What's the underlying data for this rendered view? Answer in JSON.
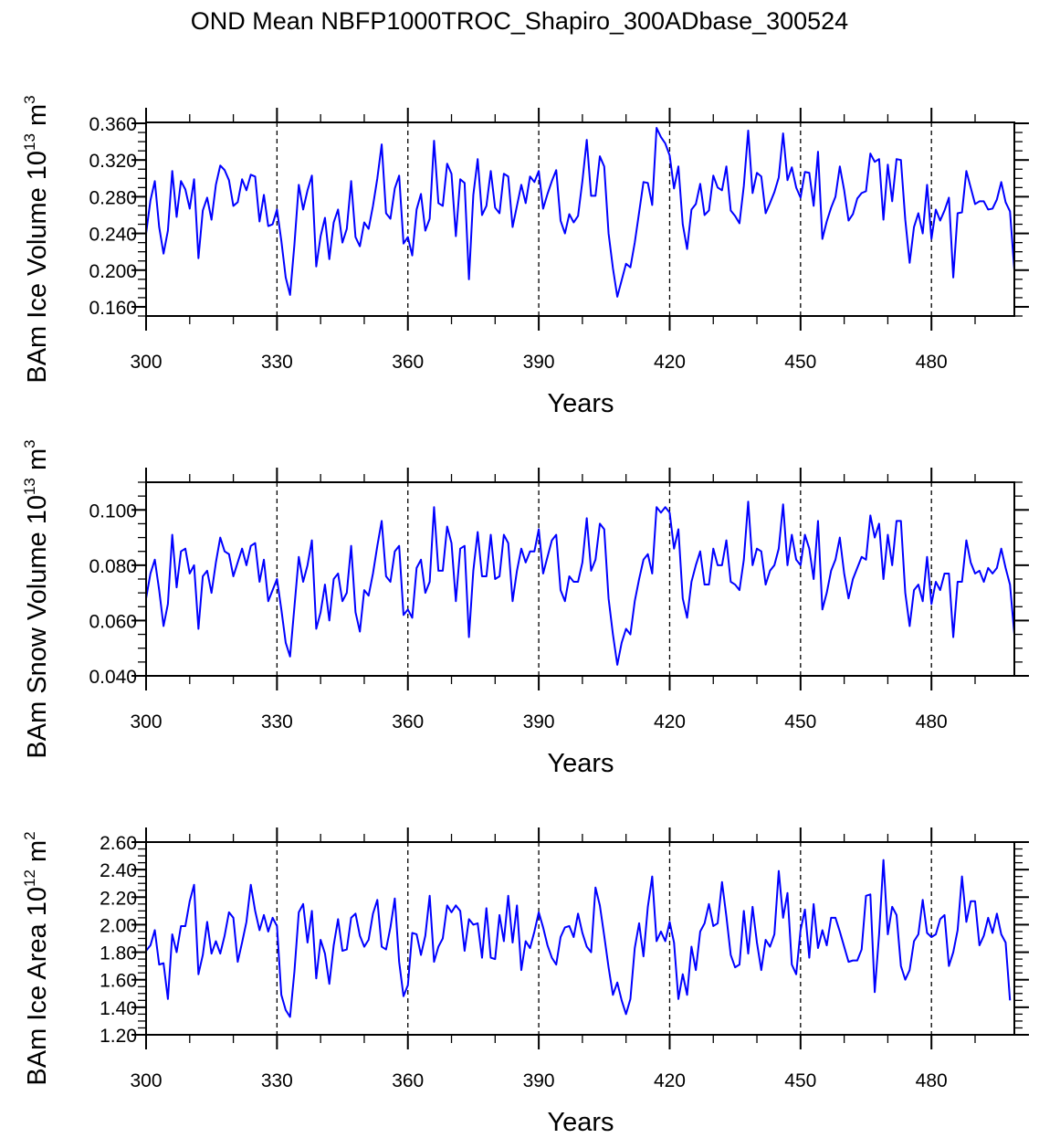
{
  "title": "OND Mean NBFP1000TROC_Shapiro_300ADbase_300524",
  "colors": {
    "line": "#0000ff",
    "axis": "#000000",
    "refline": "#000000"
  },
  "chart_data": [
    {
      "type": "line",
      "ylabel": {
        "text": "BAm Ice Volume 10",
        "exp": "13",
        "unit": " m",
        "unit_exp": "3"
      },
      "xlabel": "Years",
      "xlim": [
        300,
        499
      ],
      "ylim": [
        0.15,
        0.361
      ],
      "xticks": [
        300,
        330,
        360,
        390,
        420,
        450,
        480
      ],
      "xtick_labels": [
        "300",
        "330",
        "360",
        "390",
        "420",
        "450",
        "480"
      ],
      "yticks": [
        0.16,
        0.2,
        0.24,
        0.28,
        0.32,
        0.36
      ],
      "ytick_labels": [
        "0.160",
        "0.200",
        "0.240",
        "0.280",
        "0.320",
        "0.360"
      ],
      "yminor": 0.01,
      "reference_lines_x": [
        330,
        360,
        390,
        420,
        450,
        480
      ],
      "x_start": 300,
      "values": [
        0.24,
        0.276,
        0.297,
        0.247,
        0.218,
        0.243,
        0.308,
        0.258,
        0.297,
        0.288,
        0.267,
        0.299,
        0.213,
        0.265,
        0.279,
        0.255,
        0.293,
        0.314,
        0.309,
        0.298,
        0.27,
        0.274,
        0.299,
        0.287,
        0.304,
        0.302,
        0.253,
        0.282,
        0.248,
        0.25,
        0.266,
        0.232,
        0.192,
        0.173,
        0.228,
        0.293,
        0.266,
        0.287,
        0.303,
        0.204,
        0.237,
        0.257,
        0.212,
        0.252,
        0.266,
        0.23,
        0.245,
        0.297,
        0.236,
        0.226,
        0.252,
        0.245,
        0.27,
        0.3,
        0.337,
        0.262,
        0.256,
        0.289,
        0.303,
        0.229,
        0.236,
        0.216,
        0.266,
        0.283,
        0.243,
        0.256,
        0.341,
        0.273,
        0.27,
        0.316,
        0.305,
        0.237,
        0.299,
        0.295,
        0.19,
        0.282,
        0.321,
        0.26,
        0.27,
        0.308,
        0.268,
        0.262,
        0.305,
        0.302,
        0.247,
        0.27,
        0.293,
        0.273,
        0.302,
        0.296,
        0.308,
        0.267,
        0.283,
        0.297,
        0.309,
        0.254,
        0.24,
        0.261,
        0.252,
        0.259,
        0.297,
        0.342,
        0.281,
        0.281,
        0.324,
        0.313,
        0.24,
        0.202,
        0.171,
        0.189,
        0.207,
        0.203,
        0.23,
        0.263,
        0.296,
        0.295,
        0.271,
        0.355,
        0.345,
        0.338,
        0.325,
        0.289,
        0.313,
        0.25,
        0.223,
        0.266,
        0.272,
        0.294,
        0.26,
        0.265,
        0.303,
        0.29,
        0.287,
        0.313,
        0.265,
        0.259,
        0.251,
        0.292,
        0.352,
        0.284,
        0.306,
        0.302,
        0.262,
        0.273,
        0.285,
        0.301,
        0.349,
        0.298,
        0.312,
        0.29,
        0.279,
        0.307,
        0.306,
        0.27,
        0.329,
        0.234,
        0.253,
        0.268,
        0.28,
        0.313,
        0.287,
        0.254,
        0.261,
        0.278,
        0.284,
        0.286,
        0.327,
        0.318,
        0.321,
        0.255,
        0.315,
        0.275,
        0.321,
        0.32,
        0.255,
        0.208,
        0.247,
        0.262,
        0.24,
        0.293,
        0.234,
        0.266,
        0.254,
        0.265,
        0.279,
        0.192,
        0.262,
        0.263,
        0.308,
        0.29,
        0.272,
        0.275,
        0.275,
        0.266,
        0.267,
        0.277,
        0.296,
        0.274,
        0.264,
        0.2
      ]
    },
    {
      "type": "line",
      "ylabel": {
        "text": "BAm Snow Volume 10",
        "exp": "13",
        "unit": " m",
        "unit_exp": "3"
      },
      "xlabel": "Years",
      "xlim": [
        300,
        499
      ],
      "ylim": [
        0.04,
        0.11
      ],
      "xticks": [
        300,
        330,
        360,
        390,
        420,
        450,
        480
      ],
      "xtick_labels": [
        "300",
        "330",
        "360",
        "390",
        "420",
        "450",
        "480"
      ],
      "yticks": [
        0.04,
        0.06,
        0.08,
        0.1
      ],
      "ytick_labels": [
        "0.040",
        "0.060",
        "0.080",
        "0.100"
      ],
      "yminor": 0.005,
      "reference_lines_x": [
        330,
        360,
        390,
        420,
        450,
        480
      ],
      "x_start": 300,
      "values": [
        0.068,
        0.077,
        0.082,
        0.071,
        0.058,
        0.066,
        0.091,
        0.072,
        0.085,
        0.086,
        0.077,
        0.08,
        0.057,
        0.076,
        0.078,
        0.07,
        0.081,
        0.09,
        0.085,
        0.084,
        0.076,
        0.081,
        0.086,
        0.08,
        0.087,
        0.088,
        0.074,
        0.082,
        0.067,
        0.071,
        0.075,
        0.064,
        0.052,
        0.047,
        0.065,
        0.083,
        0.074,
        0.08,
        0.089,
        0.057,
        0.063,
        0.073,
        0.06,
        0.075,
        0.077,
        0.067,
        0.07,
        0.087,
        0.063,
        0.056,
        0.071,
        0.069,
        0.077,
        0.087,
        0.096,
        0.076,
        0.074,
        0.085,
        0.087,
        0.062,
        0.064,
        0.061,
        0.079,
        0.082,
        0.07,
        0.074,
        0.101,
        0.078,
        0.078,
        0.094,
        0.088,
        0.067,
        0.086,
        0.087,
        0.054,
        0.078,
        0.092,
        0.076,
        0.076,
        0.091,
        0.075,
        0.076,
        0.091,
        0.088,
        0.067,
        0.078,
        0.086,
        0.081,
        0.085,
        0.085,
        0.093,
        0.077,
        0.083,
        0.089,
        0.091,
        0.071,
        0.067,
        0.076,
        0.074,
        0.074,
        0.081,
        0.097,
        0.078,
        0.082,
        0.095,
        0.093,
        0.068,
        0.055,
        0.044,
        0.052,
        0.057,
        0.055,
        0.067,
        0.075,
        0.082,
        0.084,
        0.077,
        0.101,
        0.099,
        0.101,
        0.099,
        0.086,
        0.093,
        0.068,
        0.061,
        0.074,
        0.08,
        0.085,
        0.073,
        0.073,
        0.086,
        0.08,
        0.08,
        0.089,
        0.074,
        0.073,
        0.071,
        0.082,
        0.103,
        0.08,
        0.086,
        0.085,
        0.073,
        0.078,
        0.08,
        0.086,
        0.102,
        0.08,
        0.091,
        0.082,
        0.08,
        0.091,
        0.086,
        0.075,
        0.096,
        0.064,
        0.07,
        0.078,
        0.082,
        0.09,
        0.077,
        0.068,
        0.075,
        0.079,
        0.083,
        0.082,
        0.098,
        0.09,
        0.095,
        0.075,
        0.091,
        0.08,
        0.096,
        0.096,
        0.07,
        0.058,
        0.071,
        0.073,
        0.067,
        0.083,
        0.066,
        0.074,
        0.071,
        0.077,
        0.077,
        0.054,
        0.074,
        0.074,
        0.089,
        0.081,
        0.077,
        0.078,
        0.074,
        0.079,
        0.077,
        0.079,
        0.086,
        0.079,
        0.073,
        0.055
      ]
    },
    {
      "type": "line",
      "ylabel": {
        "text": "BAm Ice Area 10",
        "exp": "12",
        "unit": " m",
        "unit_exp": "2"
      },
      "xlabel": "Years",
      "xlim": [
        300,
        499
      ],
      "ylim": [
        1.2,
        2.6
      ],
      "xticks": [
        300,
        330,
        360,
        390,
        420,
        450,
        480
      ],
      "xtick_labels": [
        "300",
        "330",
        "360",
        "390",
        "420",
        "450",
        "480"
      ],
      "yticks": [
        1.2,
        1.4,
        1.6,
        1.8,
        2.0,
        2.2,
        2.4,
        2.6
      ],
      "ytick_labels": [
        "1.20",
        "1.40",
        "1.60",
        "1.80",
        "2.00",
        "2.20",
        "2.40",
        "2.60"
      ],
      "yminor": 0.05,
      "reference_lines_x": [
        330,
        360,
        390,
        420,
        450,
        480
      ],
      "x_start": 300,
      "values": [
        1.81,
        1.85,
        1.96,
        1.71,
        1.72,
        1.46,
        1.93,
        1.8,
        1.99,
        1.99,
        2.17,
        2.29,
        1.64,
        1.78,
        2.02,
        1.79,
        1.88,
        1.79,
        1.92,
        2.09,
        2.05,
        1.73,
        1.87,
        2.02,
        2.29,
        2.1,
        1.96,
        2.07,
        1.95,
        2.05,
        1.99,
        1.49,
        1.38,
        1.33,
        1.66,
        2.09,
        2.15,
        1.87,
        2.1,
        1.61,
        1.89,
        1.79,
        1.57,
        1.85,
        2.04,
        1.81,
        1.82,
        2.05,
        2.08,
        1.92,
        1.84,
        1.89,
        2.08,
        2.18,
        1.84,
        1.82,
        1.98,
        2.19,
        1.73,
        1.48,
        1.56,
        1.94,
        1.93,
        1.78,
        1.92,
        2.21,
        1.73,
        1.84,
        1.9,
        2.14,
        2.09,
        2.14,
        2.1,
        1.81,
        2.04,
        2.0,
        2.01,
        1.76,
        2.12,
        1.76,
        1.75,
        2.07,
        1.88,
        2.21,
        1.87,
        2.14,
        1.67,
        1.88,
        1.83,
        1.95,
        2.09,
        1.98,
        1.85,
        1.76,
        1.71,
        1.91,
        1.98,
        1.99,
        1.91,
        2.08,
        1.94,
        1.84,
        1.8,
        2.27,
        2.14,
        1.92,
        1.69,
        1.49,
        1.58,
        1.45,
        1.35,
        1.46,
        1.83,
        2.01,
        1.77,
        2.13,
        2.35,
        1.88,
        1.95,
        1.88,
        2.02,
        1.87,
        1.46,
        1.64,
        1.49,
        1.84,
        1.67,
        1.95,
        2.01,
        2.15,
        1.99,
        2.01,
        2.31,
        2.06,
        1.78,
        1.69,
        1.71,
        2.1,
        1.79,
        2.13,
        1.87,
        1.67,
        1.89,
        1.84,
        1.93,
        2.39,
        2.05,
        2.23,
        1.71,
        1.64,
        1.96,
        2.11,
        1.76,
        2.15,
        1.83,
        1.96,
        1.85,
        2.05,
        2.05,
        1.95,
        1.84,
        1.73,
        1.74,
        1.74,
        1.82,
        2.21,
        2.22,
        1.51,
        1.93,
        2.47,
        1.93,
        2.13,
        2.07,
        1.7,
        1.6,
        1.67,
        1.88,
        1.93,
        2.18,
        1.94,
        1.91,
        1.93,
        2.04,
        2.07,
        1.7,
        1.8,
        1.96,
        2.35,
        2.02,
        2.17,
        2.17,
        1.85,
        1.92,
        2.05,
        1.94,
        2.08,
        1.93,
        1.87,
        1.45
      ]
    }
  ]
}
